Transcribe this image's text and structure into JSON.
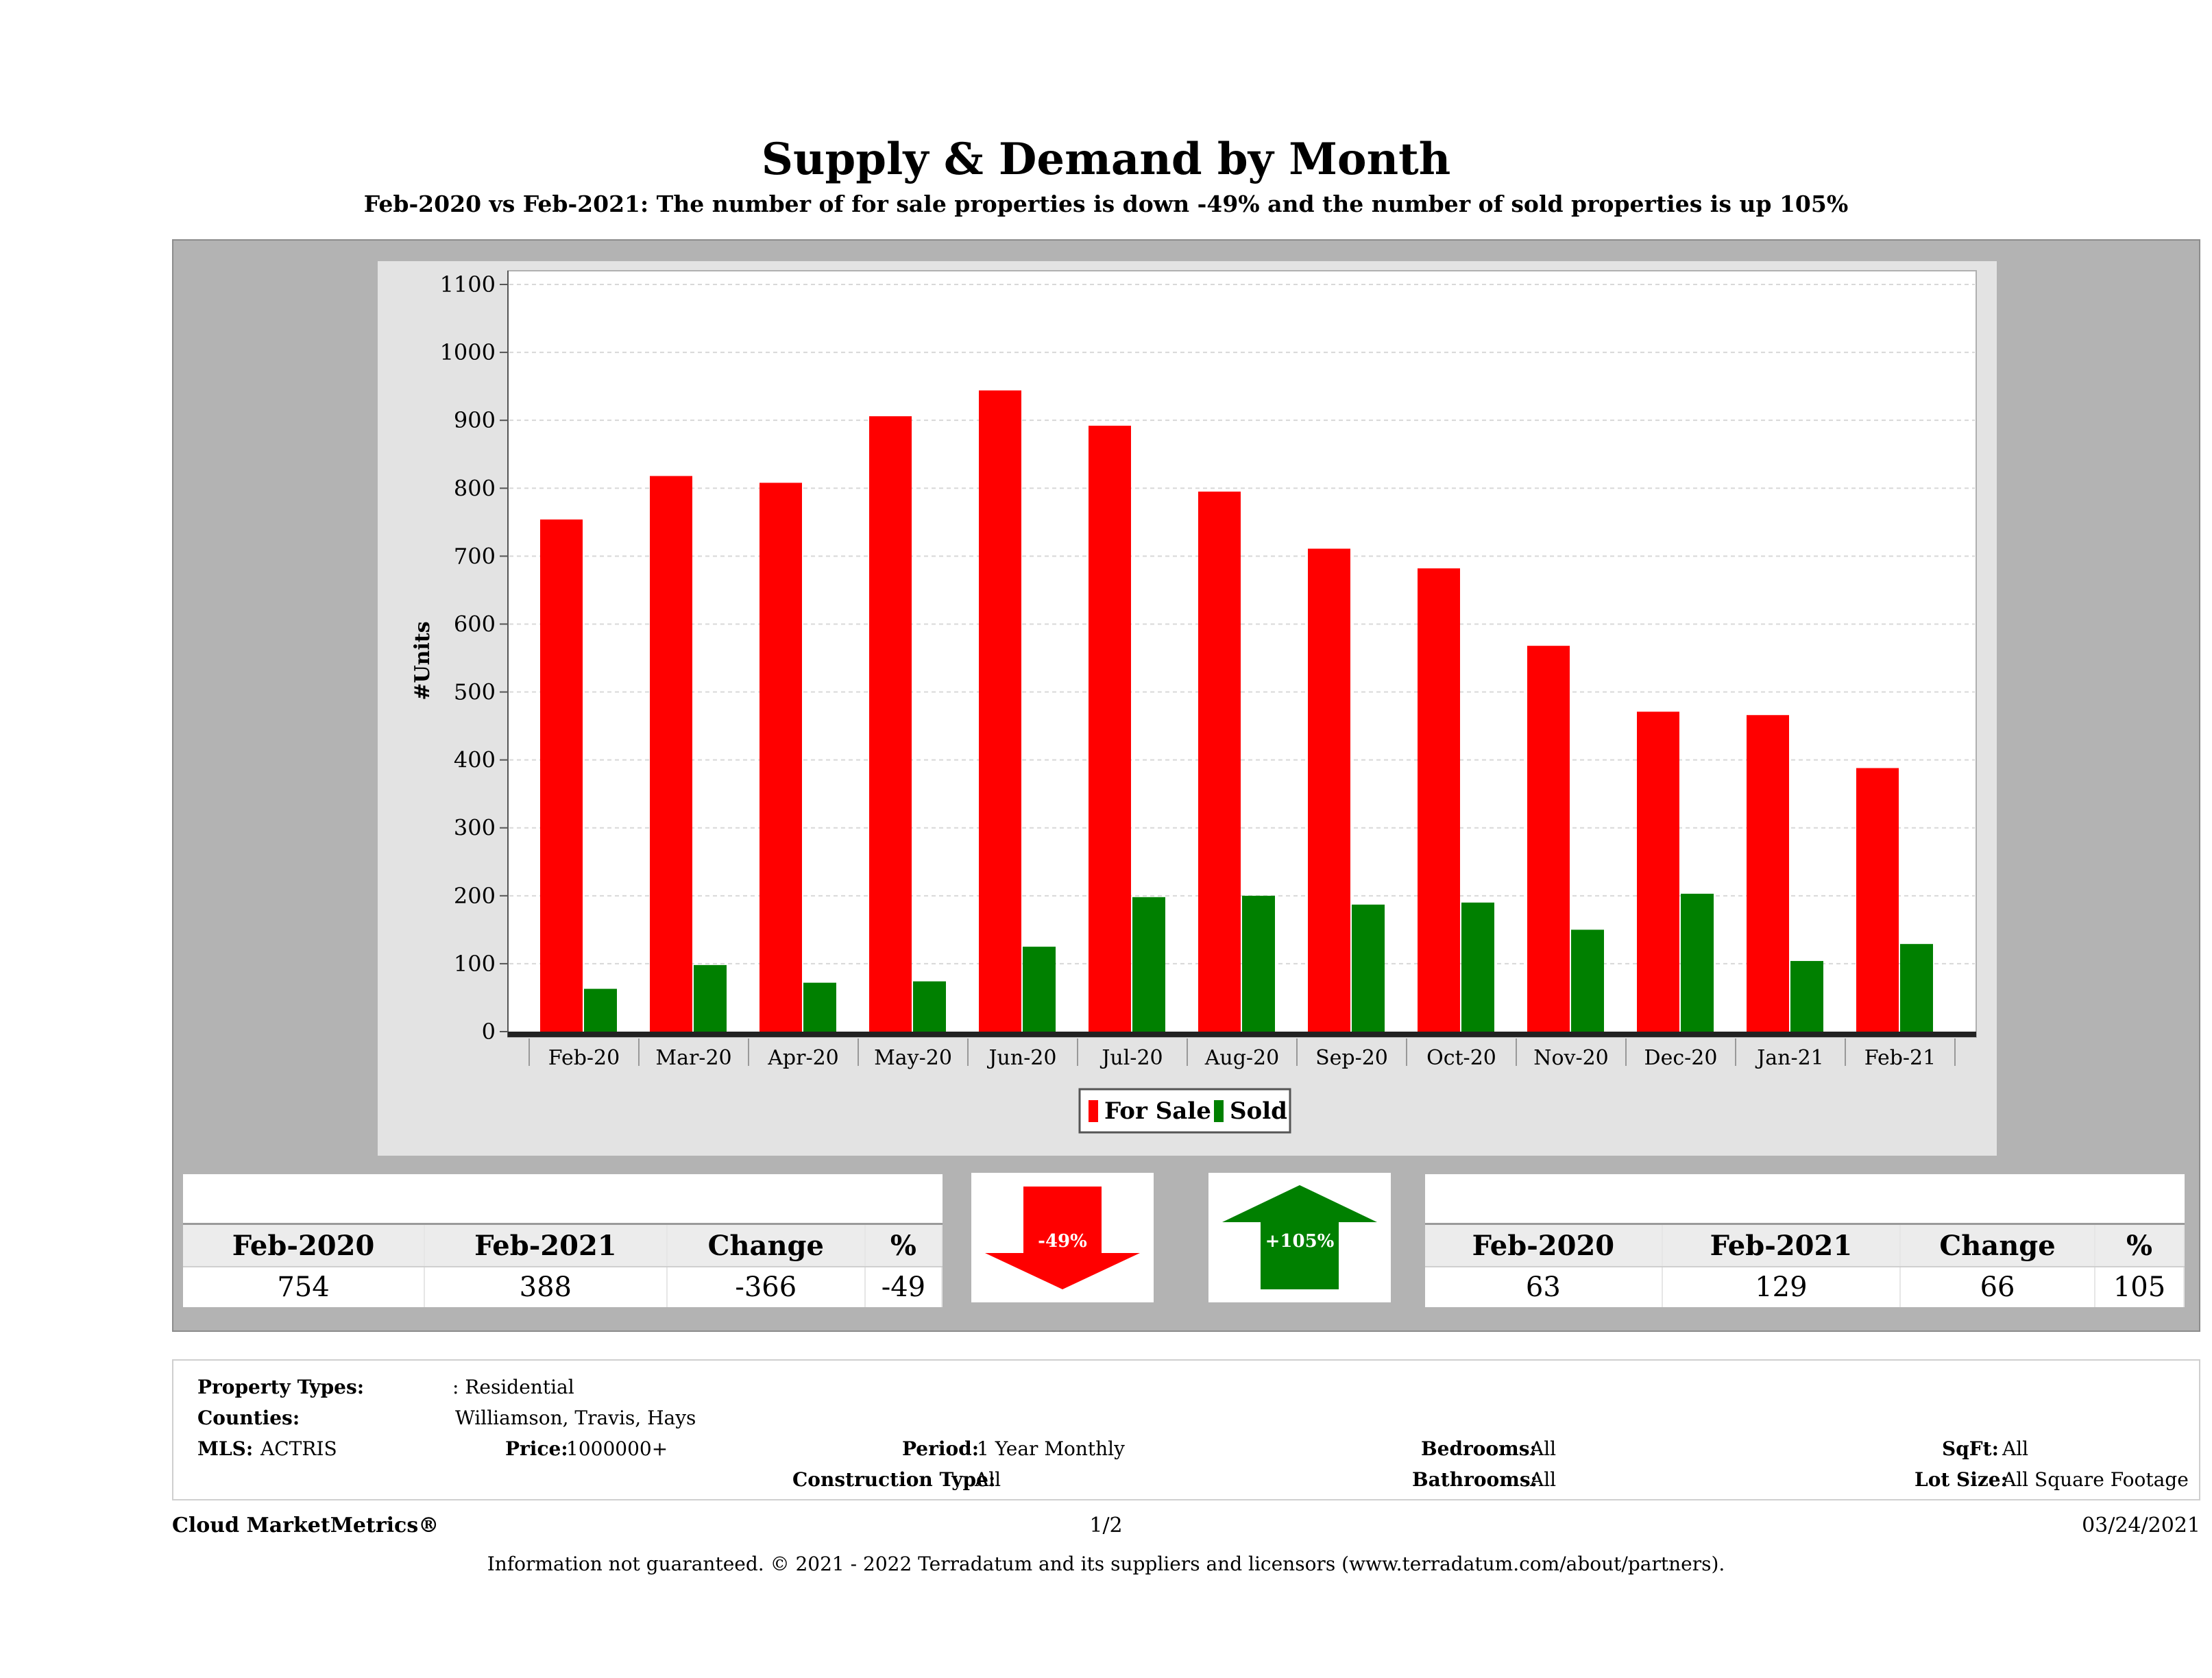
{
  "header": {
    "title": "Supply & Demand by Month",
    "subtitle": "Feb-2020 vs Feb-2021: The number of for sale properties is down -49% and the number of sold properties is up 105%"
  },
  "chart_data": {
    "type": "bar",
    "categories": [
      "Feb-20",
      "Mar-20",
      "Apr-20",
      "May-20",
      "Jun-20",
      "Jul-20",
      "Aug-20",
      "Sep-20",
      "Oct-20",
      "Nov-20",
      "Dec-20",
      "Jan-21",
      "Feb-21"
    ],
    "series": [
      {
        "name": "For Sale",
        "color": "#ff0000",
        "values": [
          754,
          818,
          808,
          906,
          944,
          892,
          795,
          711,
          682,
          568,
          471,
          466,
          388
        ]
      },
      {
        "name": "Sold",
        "color": "#008000",
        "values": [
          63,
          98,
          72,
          74,
          125,
          198,
          200,
          187,
          190,
          150,
          203,
          104,
          129
        ]
      }
    ],
    "ylabel": "#Units",
    "ylim": [
      0,
      1100
    ],
    "yticks": [
      0,
      100,
      200,
      300,
      400,
      500,
      600,
      700,
      800,
      900,
      1000,
      1100
    ],
    "grid": true,
    "legend_position": "bottom-center"
  },
  "for_sale_stats": {
    "headers": [
      "Feb-2020",
      "Feb-2021",
      "Change",
      "%"
    ],
    "values": [
      "754",
      "388",
      "-366",
      "-49"
    ]
  },
  "sold_stats": {
    "headers": [
      "Feb-2020",
      "Feb-2021",
      "Change",
      "%"
    ],
    "values": [
      "63",
      "129",
      "66",
      "105"
    ]
  },
  "arrows": {
    "down_label": "-49%",
    "down_color": "#ff0000",
    "up_label": "+105%",
    "up_color": "#008000"
  },
  "criteria": {
    "property_types_label": "Property Types:",
    "property_types_value": ": Residential",
    "counties_label": "Counties:",
    "counties_value": "Williamson, Travis, Hays",
    "mls_label": "MLS:",
    "mls_value": "ACTRIS",
    "price_label": "Price:",
    "price_value": "1000000+",
    "period_label": "Period:",
    "period_value": "1 Year Monthly",
    "construction_label": "Construction Type:",
    "construction_value": "All",
    "bedrooms_label": "Bedrooms:",
    "bedrooms_value": "All",
    "bathrooms_label": "Bathrooms:",
    "bathrooms_value": "All",
    "sqft_label": "SqFt:",
    "sqft_value": "All",
    "lotsize_label": "Lot Size:",
    "lotsize_value": "All Square Footage"
  },
  "footer": {
    "brand": "Cloud MarketMetrics®",
    "page": "1/2",
    "date": "03/24/2021",
    "note": "Information not guaranteed. © 2021 - 2022 Terradatum and its suppliers and licensors (www.terradatum.com/about/partners)."
  }
}
